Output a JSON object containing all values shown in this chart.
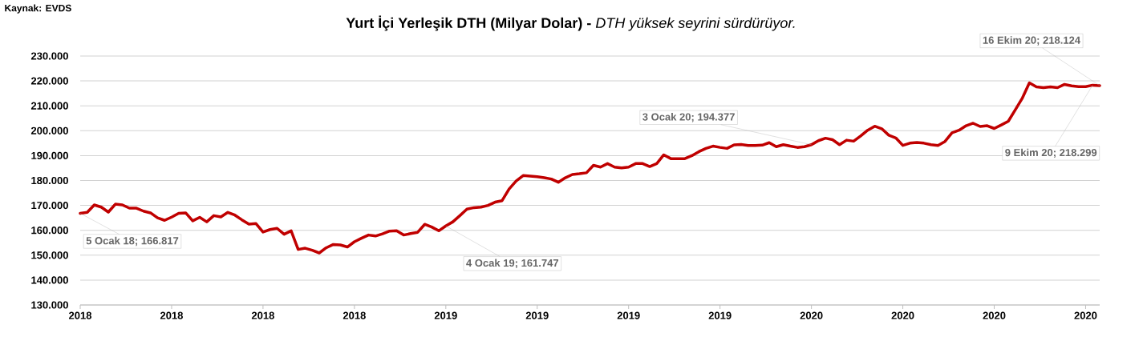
{
  "chart_data": {
    "type": "line",
    "title": "**Yurt İçi Yerleşik DTH (Milyar Dolar) -** *DTH yüksek seyrini sürdürüyor.*",
    "annotations": [
      "Kaynak: EVDS",
      {
        "text": "5 Ocak 18;  166.817",
        "x": "2018-01-05",
        "y": 166.817
      },
      {
        "text": "4 Ocak 19;  161.747",
        "x": "2019-01-04",
        "y": 161.747
      },
      {
        "text": "3 Ocak 20;  194.377",
        "x": "2020-01-03",
        "y": 194.377
      },
      {
        "text": "9 Ekim 20;  218.299",
        "x": "2020-10-09",
        "y": 218.299
      },
      {
        "text": "16 Ekim 20;  218.124",
        "x": "2020-10-16",
        "y": 218.124
      }
    ],
    "color": "#c00000",
    "grid": "y",
    "xlim": [
      "2018-01-05",
      "2020-10-16"
    ],
    "xticks": [
      {
        "value": "2018-01-05",
        "label": "2018"
      },
      {
        "value": "2018-04-06",
        "label": "2018"
      },
      {
        "value": "2018-07-06",
        "label": "2018"
      },
      {
        "value": "2018-10-05",
        "label": "2018"
      },
      {
        "value": "2019-01-04",
        "label": "2019"
      },
      {
        "value": "2019-04-05",
        "label": "2019"
      },
      {
        "value": "2019-07-05",
        "label": "2019"
      },
      {
        "value": "2019-10-04",
        "label": "2019"
      },
      {
        "value": "2020-01-03",
        "label": "2020"
      },
      {
        "value": "2020-04-03",
        "label": "2020"
      },
      {
        "value": "2020-07-03",
        "label": "2020"
      },
      {
        "value": "2020-10-02",
        "label": "2020"
      }
    ],
    "ylim": [
      130,
      230
    ],
    "yticks": [
      {
        "value": 130,
        "label": "130.000"
      },
      {
        "value": 140,
        "label": "140.000"
      },
      {
        "value": 150,
        "label": "150.000"
      },
      {
        "value": 160,
        "label": "160.000"
      },
      {
        "value": 170,
        "label": "170.000"
      },
      {
        "value": 180,
        "label": "180.000"
      },
      {
        "value": 190,
        "label": "190.000"
      },
      {
        "value": 200,
        "label": "200.000"
      },
      {
        "value": 210,
        "label": "210.000"
      },
      {
        "value": 220,
        "label": "220.000"
      },
      {
        "value": 230,
        "label": "230.000"
      }
    ],
    "x": [
      "2018-01-05",
      "2018-01-12",
      "2018-01-19",
      "2018-01-26",
      "2018-02-02",
      "2018-02-09",
      "2018-02-16",
      "2018-02-23",
      "2018-03-02",
      "2018-03-09",
      "2018-03-16",
      "2018-03-23",
      "2018-03-30",
      "2018-04-06",
      "2018-04-13",
      "2018-04-20",
      "2018-04-27",
      "2018-05-04",
      "2018-05-11",
      "2018-05-18",
      "2018-05-25",
      "2018-06-01",
      "2018-06-08",
      "2018-06-15",
      "2018-06-22",
      "2018-06-29",
      "2018-07-06",
      "2018-07-13",
      "2018-07-20",
      "2018-07-27",
      "2018-08-03",
      "2018-08-10",
      "2018-08-17",
      "2018-08-24",
      "2018-08-31",
      "2018-09-07",
      "2018-09-14",
      "2018-09-21",
      "2018-09-28",
      "2018-10-05",
      "2018-10-12",
      "2018-10-19",
      "2018-10-26",
      "2018-11-02",
      "2018-11-09",
      "2018-11-16",
      "2018-11-23",
      "2018-11-30",
      "2018-12-07",
      "2018-12-14",
      "2018-12-21",
      "2018-12-28",
      "2019-01-04",
      "2019-01-11",
      "2019-01-18",
      "2019-01-25",
      "2019-02-01",
      "2019-02-08",
      "2019-02-15",
      "2019-02-22",
      "2019-03-01",
      "2019-03-08",
      "2019-03-15",
      "2019-03-22",
      "2019-03-29",
      "2019-04-05",
      "2019-04-12",
      "2019-04-19",
      "2019-04-26",
      "2019-05-03",
      "2019-05-10",
      "2019-05-17",
      "2019-05-24",
      "2019-05-31",
      "2019-06-07",
      "2019-06-14",
      "2019-06-21",
      "2019-06-28",
      "2019-07-05",
      "2019-07-12",
      "2019-07-19",
      "2019-07-26",
      "2019-08-02",
      "2019-08-09",
      "2019-08-16",
      "2019-08-23",
      "2019-08-30",
      "2019-09-06",
      "2019-09-13",
      "2019-09-20",
      "2019-09-27",
      "2019-10-04",
      "2019-10-11",
      "2019-10-18",
      "2019-10-25",
      "2019-11-01",
      "2019-11-08",
      "2019-11-15",
      "2019-11-22",
      "2019-11-29",
      "2019-12-06",
      "2019-12-13",
      "2019-12-20",
      "2019-12-27",
      "2020-01-03",
      "2020-01-10",
      "2020-01-17",
      "2020-01-24",
      "2020-01-31",
      "2020-02-07",
      "2020-02-14",
      "2020-02-21",
      "2020-02-28",
      "2020-03-06",
      "2020-03-13",
      "2020-03-20",
      "2020-03-27",
      "2020-04-03",
      "2020-04-10",
      "2020-04-17",
      "2020-04-24",
      "2020-05-01",
      "2020-05-08",
      "2020-05-15",
      "2020-05-22",
      "2020-05-29",
      "2020-06-05",
      "2020-06-12",
      "2020-06-19",
      "2020-06-26",
      "2020-07-03",
      "2020-07-10",
      "2020-07-17",
      "2020-07-24",
      "2020-07-31",
      "2020-08-07",
      "2020-08-14",
      "2020-08-21",
      "2020-08-28",
      "2020-09-04",
      "2020-09-11",
      "2020-09-18",
      "2020-09-25",
      "2020-10-02",
      "2020-10-09",
      "2020-10-16"
    ],
    "values": [
      166.817,
      167.2,
      170.2,
      169.3,
      167.3,
      170.5,
      170.2,
      168.9,
      168.9,
      167.7,
      167.0,
      165.0,
      164.0,
      165.3,
      166.8,
      167.0,
      163.8,
      165.2,
      163.4,
      165.9,
      165.4,
      167.2,
      166.1,
      164.2,
      162.5,
      162.7,
      159.3,
      160.3,
      160.8,
      158.4,
      159.8,
      152.3,
      152.8,
      152.0,
      150.9,
      153.0,
      154.3,
      154.1,
      153.3,
      155.4,
      156.8,
      158.1,
      157.7,
      158.6,
      159.7,
      159.8,
      158.1,
      158.7,
      159.2,
      162.4,
      161.3,
      159.8,
      161.747,
      163.4,
      165.9,
      168.5,
      169.1,
      169.3,
      170.0,
      171.3,
      171.9,
      176.6,
      179.8,
      182.0,
      181.8,
      181.5,
      181.1,
      180.6,
      179.3,
      181.1,
      182.4,
      182.7,
      183.1,
      186.1,
      185.4,
      186.8,
      185.4,
      185.1,
      185.4,
      186.8,
      186.8,
      185.6,
      186.8,
      190.3,
      188.8,
      188.8,
      188.8,
      190.0,
      191.6,
      192.9,
      193.8,
      193.3,
      192.9,
      194.3,
      194.5,
      194.1,
      194.1,
      194.2,
      195.2,
      193.6,
      194.4,
      193.8,
      193.3,
      193.6,
      194.377,
      196.0,
      197.0,
      196.4,
      194.4,
      196.2,
      195.8,
      197.9,
      200.2,
      201.8,
      200.8,
      198.2,
      197.1,
      194.1,
      195.0,
      195.3,
      195.0,
      194.4,
      194.1,
      195.7,
      199.2,
      200.2,
      202.0,
      203.0,
      201.7,
      202.0,
      200.9,
      202.3,
      203.8,
      208.4,
      213.1,
      219.2,
      217.6,
      217.3,
      217.6,
      217.3,
      218.6,
      218.0,
      217.7,
      217.7,
      218.299,
      218.124
    ]
  }
}
